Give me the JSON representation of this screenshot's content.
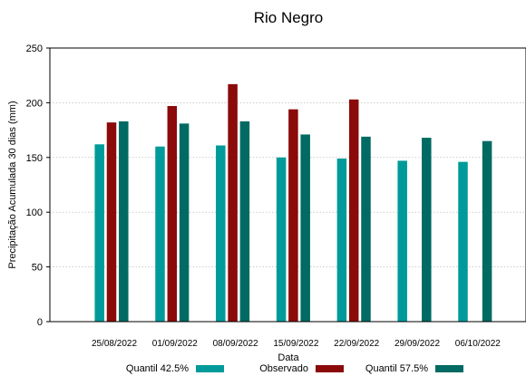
{
  "chart_data": {
    "type": "bar",
    "title": "Rio Negro",
    "xlabel": "Data",
    "ylabel": "Precipitação Acumulada 30 dias (mm)",
    "ylim": [
      0,
      250
    ],
    "yticks": [
      "0",
      "50",
      "100",
      "150",
      "200",
      "250"
    ],
    "grid": true,
    "legend_position": "bottom",
    "categories": [
      "25/08/2022",
      "01/09/2022",
      "08/09/2022",
      "15/09/2022",
      "22/09/2022",
      "29/09/2022",
      "06/10/2022"
    ],
    "series": [
      {
        "name": "Quantil 42.5%",
        "color": "#009a9a",
        "values": [
          162,
          160,
          161,
          150,
          149,
          147,
          146
        ]
      },
      {
        "name": "Observado",
        "color": "#8b0a0a",
        "values": [
          182,
          197,
          217,
          194,
          203,
          null,
          null
        ]
      },
      {
        "name": "Quantil 57.5%",
        "color": "#006a63",
        "values": [
          183,
          181,
          183,
          171,
          169,
          168,
          165
        ]
      }
    ]
  }
}
